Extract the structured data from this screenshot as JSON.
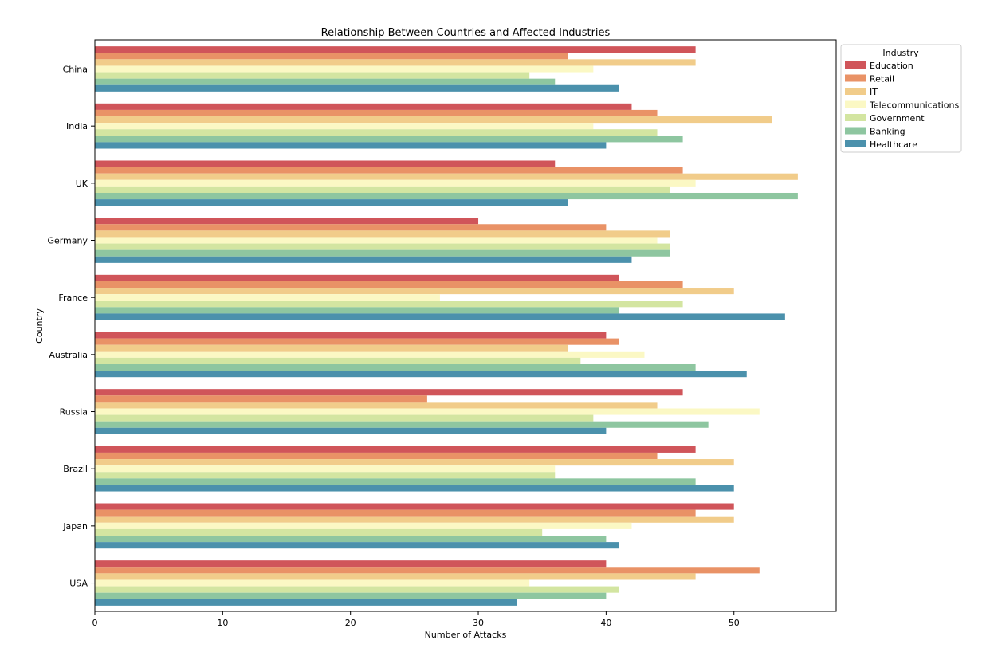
{
  "chart_data": {
    "type": "bar",
    "orientation": "horizontal",
    "title": "Relationship Between Countries and Affected Industries",
    "xlabel": "Number of Attacks",
    "ylabel": "Country",
    "xlim": [
      0,
      58
    ],
    "xticks": [
      0,
      10,
      20,
      30,
      40,
      50
    ],
    "grid": false,
    "legend_title": "Industry",
    "legend_position": "top-right (outside)",
    "categories": [
      "China",
      "India",
      "UK",
      "Germany",
      "France",
      "Australia",
      "Russia",
      "Brazil",
      "Japan",
      "USA"
    ],
    "series": [
      {
        "name": "Education",
        "color": "#d0555a",
        "values": [
          47,
          42,
          36,
          30,
          41,
          40,
          46,
          47,
          50,
          40
        ]
      },
      {
        "name": "Retail",
        "color": "#e99266",
        "values": [
          37,
          44,
          46,
          40,
          46,
          41,
          26,
          44,
          47,
          52
        ]
      },
      {
        "name": "IT",
        "color": "#f1cc8a",
        "values": [
          47,
          53,
          55,
          45,
          50,
          37,
          44,
          50,
          50,
          47
        ]
      },
      {
        "name": "Telecommunications",
        "color": "#fbf8c4",
        "values": [
          39,
          39,
          47,
          44,
          27,
          43,
          52,
          36,
          42,
          34
        ]
      },
      {
        "name": "Government",
        "color": "#d3e5a1",
        "values": [
          34,
          44,
          45,
          45,
          46,
          38,
          39,
          36,
          35,
          41
        ]
      },
      {
        "name": "Banking",
        "color": "#8ec6a0",
        "values": [
          36,
          46,
          55,
          45,
          41,
          47,
          48,
          47,
          40,
          40
        ]
      },
      {
        "name": "Healthcare",
        "color": "#4b91ac",
        "values": [
          41,
          40,
          37,
          42,
          54,
          51,
          40,
          50,
          41,
          33
        ]
      }
    ]
  }
}
